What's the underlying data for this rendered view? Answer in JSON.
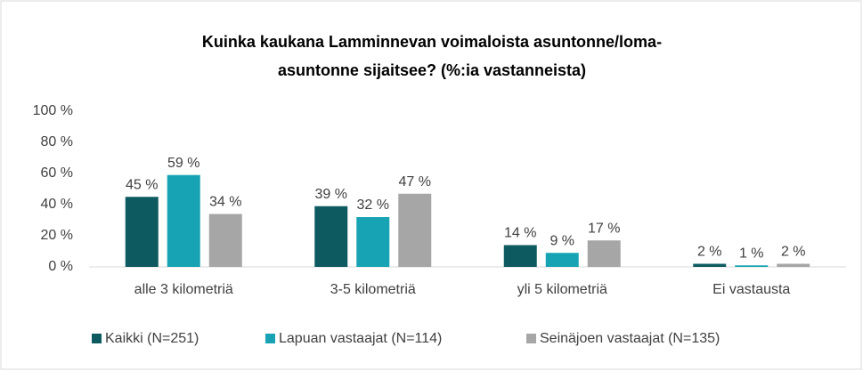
{
  "chart_data": {
    "type": "bar",
    "title": [
      "Kuinka kaukana Lamminnevan voimaloista asuntonne/loma-",
      "asuntonne sijaitsee? (%:ia vastanneista)"
    ],
    "categories": [
      "alle 3 kilometriä",
      "3-5 kilometriä",
      "yli 5 kilometriä",
      "Ei vastausta"
    ],
    "series": [
      {
        "name": "Kaikki (N=251)",
        "color": "#0d5b60",
        "values": [
          45,
          39,
          14,
          2
        ],
        "value_labels": [
          "45 %",
          "39 %",
          "14 %",
          "2 %"
        ]
      },
      {
        "name": "Lapuan vastaajat (N=114)",
        "color": "#17a3b3",
        "values": [
          59,
          32,
          9,
          1
        ],
        "value_labels": [
          "59 %",
          "32 %",
          "9 %",
          "1 %"
        ]
      },
      {
        "name": "Seinäjoen vastaajat (N=135)",
        "color": "#a6a6a6",
        "values": [
          34,
          47,
          17,
          2
        ],
        "value_labels": [
          "34 %",
          "47 %",
          "17 %",
          "2 %"
        ]
      }
    ],
    "ylim": [
      0,
      100
    ],
    "yticks": [
      {
        "value": 0,
        "label": "0 %"
      },
      {
        "value": 20,
        "label": "20 %"
      },
      {
        "value": 40,
        "label": "40 %"
      },
      {
        "value": 60,
        "label": "60 %"
      },
      {
        "value": 80,
        "label": "80 %"
      },
      {
        "value": 100,
        "label": "100 %"
      }
    ],
    "legend": "bottom"
  }
}
